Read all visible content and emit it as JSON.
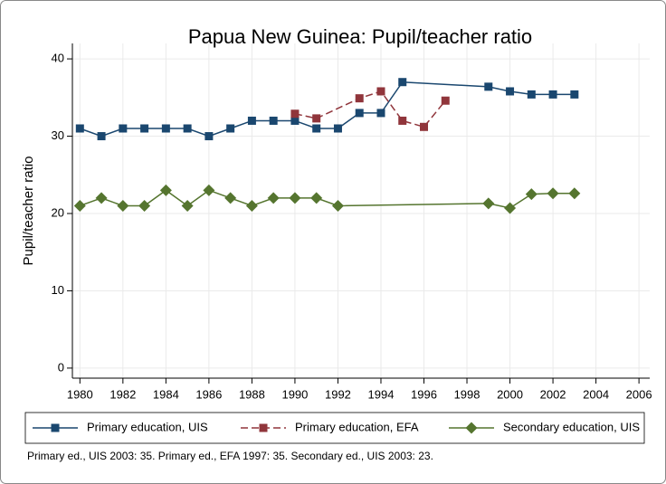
{
  "chart_data": {
    "type": "line",
    "title": "Papua New Guinea: Pupil/teacher ratio",
    "ylabel": "Pupil/teacher ratio",
    "note": "Primary ed., UIS 2003: 35. Primary ed., EFA 1997: 35. Secondary ed., UIS 2003: 23.",
    "xlim": [
      1979.65,
      2006.5
    ],
    "xticks": [
      1980,
      1982,
      1984,
      1986,
      1988,
      1990,
      1992,
      1994,
      1996,
      1998,
      2000,
      2002,
      2004,
      2006
    ],
    "ylim": [
      -1.3,
      42
    ],
    "yticks": [
      0,
      10,
      20,
      30,
      40
    ],
    "grid": true,
    "series": [
      {
        "name": "Primary education, UIS",
        "color": "#1a476f",
        "marker": "square",
        "dash": false,
        "x": [
          1980,
          1981,
          1982,
          1983,
          1984,
          1985,
          1986,
          1987,
          1988,
          1989,
          1990,
          1991,
          1992,
          1993,
          1994,
          1995,
          1999,
          2000,
          2001,
          2002,
          2003
        ],
        "values": [
          31,
          30,
          31,
          31,
          31,
          31,
          30,
          31,
          32,
          32,
          32,
          31,
          31,
          33,
          33,
          37,
          36.4,
          35.8,
          35.4,
          35.4,
          35.4
        ]
      },
      {
        "name": "Primary education, EFA",
        "color": "#90353b",
        "marker": "square",
        "dash": true,
        "x": [
          1990,
          1991,
          1993,
          1994,
          1995,
          1996,
          1997
        ],
        "values": [
          32.9,
          32.3,
          34.9,
          35.8,
          32,
          31.2,
          34.6
        ]
      },
      {
        "name": "Secondary education, UIS",
        "color": "#55752f",
        "marker": "diamond",
        "dash": false,
        "x": [
          1980,
          1981,
          1982,
          1983,
          1984,
          1985,
          1986,
          1987,
          1988,
          1989,
          1990,
          1991,
          1992,
          1999,
          2000,
          2001,
          2002,
          2003
        ],
        "values": [
          21,
          22,
          21,
          21,
          23,
          21,
          23,
          22,
          21,
          22,
          22,
          22,
          21,
          21.3,
          20.7,
          22.5,
          22.6,
          22.6
        ]
      }
    ]
  }
}
